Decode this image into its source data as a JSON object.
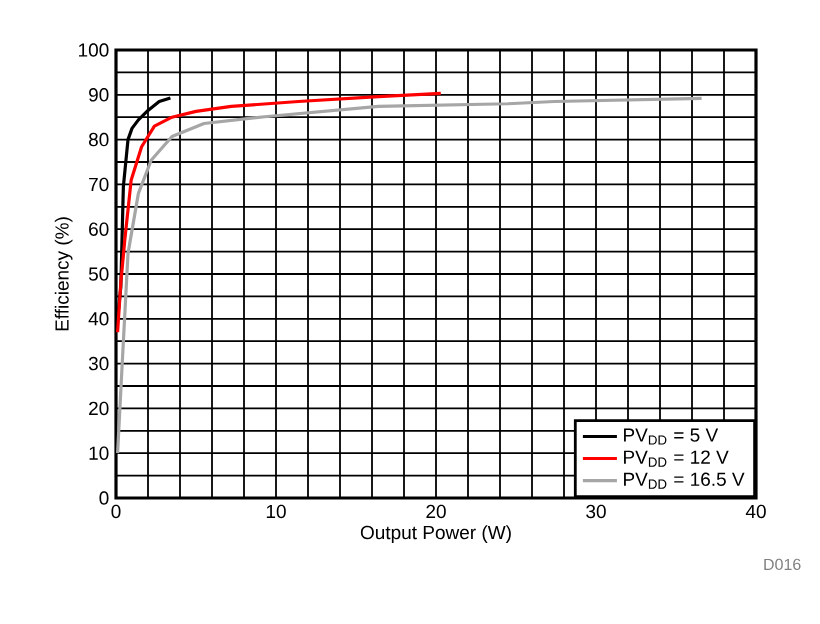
{
  "chart_data": {
    "type": "line",
    "xlabel": "Output Power (W)",
    "ylabel": "Efficiency (%)",
    "xlim": [
      0,
      40
    ],
    "xticks": [
      0,
      10,
      20,
      30,
      40
    ],
    "ylim": [
      0,
      100
    ],
    "yticks": [
      0,
      10,
      20,
      30,
      40,
      50,
      60,
      70,
      80,
      90,
      100
    ],
    "grid": true,
    "legend": "bottom right",
    "marker": "none",
    "line_style": "solid",
    "annotations": [
      "D016"
    ],
    "series": [
      {
        "name": "PV$_{DD}$ = 5 V",
        "color": "#000000",
        "x": [
          0.1,
          0.3,
          0.46,
          0.75,
          1.0,
          1.4,
          2.0,
          2.7,
          3.4
        ],
        "values": [
          40,
          47,
          69.5,
          80,
          82.5,
          84.4,
          86.5,
          88.5,
          89.3
        ]
      },
      {
        "name": "PV$_{DD}$ = 12 V",
        "color": "#ff0000",
        "x": [
          0.1,
          0.3,
          0.55,
          0.95,
          1.6,
          2.4,
          3.5,
          5,
          7.2,
          11.4,
          16.4,
          20.3
        ],
        "values": [
          37,
          48,
          57.6,
          71,
          78.4,
          83,
          85,
          86.3,
          87.4,
          88.5,
          89.6,
          90.3
        ]
      },
      {
        "name": "PV$_{DD}$ = 16.5 V",
        "color": "#a6a6a6",
        "x": [
          0.1,
          0.33,
          0.75,
          1.4,
          2.2,
          3.5,
          5.5,
          9.3,
          16.4,
          24.5,
          27.4,
          36.6
        ],
        "values": [
          10,
          26,
          54.6,
          68,
          75.4,
          80.7,
          83.6,
          85.1,
          87.4,
          88,
          88.5,
          89.2
        ]
      }
    ]
  }
}
